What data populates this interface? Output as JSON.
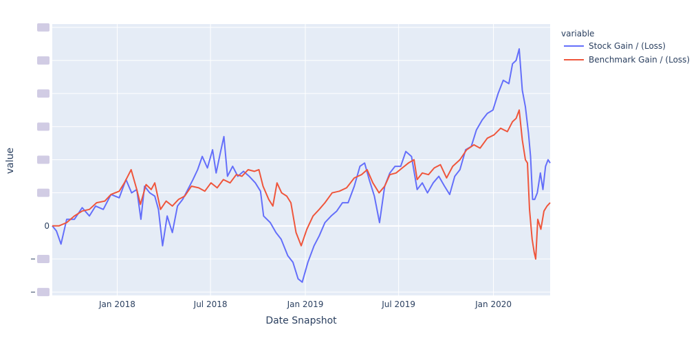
{
  "chart_data": {
    "type": "line",
    "title": "",
    "xlabel": "Date Snapshot",
    "ylabel": "value",
    "x_ticks": [
      "Jan 2018",
      "Jul 2018",
      "Jan 2019",
      "Jul 2019",
      "Jan 2020"
    ],
    "y_ticks_visible": [
      "0"
    ],
    "xlim": [
      "2017-08-28",
      "2020-04-20"
    ],
    "ylim": [
      -2.1,
      6.1
    ],
    "grid": true,
    "legend": {
      "title": "variable",
      "placement": "right"
    },
    "series": [
      {
        "name": "Stock Gain / (Loss)",
        "color": "#636efa",
        "points": [
          [
            "2017-08-28",
            0.0
          ],
          [
            "2017-09-05",
            -0.15
          ],
          [
            "2017-09-14",
            -0.55
          ],
          [
            "2017-09-25",
            0.2
          ],
          [
            "2017-10-10",
            0.2
          ],
          [
            "2017-10-25",
            0.55
          ],
          [
            "2017-11-08",
            0.3
          ],
          [
            "2017-11-20",
            0.6
          ],
          [
            "2017-12-05",
            0.5
          ],
          [
            "2017-12-20",
            0.95
          ],
          [
            "2018-01-05",
            0.85
          ],
          [
            "2018-01-18",
            1.4
          ],
          [
            "2018-01-29",
            1.0
          ],
          [
            "2018-02-08",
            1.1
          ],
          [
            "2018-02-16",
            0.2
          ],
          [
            "2018-02-23",
            1.2
          ],
          [
            "2018-03-05",
            1.0
          ],
          [
            "2018-03-15",
            0.9
          ],
          [
            "2018-03-22",
            0.5
          ],
          [
            "2018-03-30",
            -0.6
          ],
          [
            "2018-04-08",
            0.3
          ],
          [
            "2018-04-18",
            -0.2
          ],
          [
            "2018-04-28",
            0.6
          ],
          [
            "2018-05-08",
            0.8
          ],
          [
            "2018-05-18",
            1.1
          ],
          [
            "2018-05-28",
            1.4
          ],
          [
            "2018-06-06",
            1.7
          ],
          [
            "2018-06-15",
            2.1
          ],
          [
            "2018-06-25",
            1.75
          ],
          [
            "2018-07-05",
            2.3
          ],
          [
            "2018-07-12",
            1.6
          ],
          [
            "2018-07-20",
            2.2
          ],
          [
            "2018-07-27",
            2.7
          ],
          [
            "2018-08-03",
            1.5
          ],
          [
            "2018-08-13",
            1.8
          ],
          [
            "2018-08-23",
            1.5
          ],
          [
            "2018-09-03",
            1.65
          ],
          [
            "2018-09-14",
            1.5
          ],
          [
            "2018-09-26",
            1.3
          ],
          [
            "2018-10-06",
            1.05
          ],
          [
            "2018-10-12",
            0.3
          ],
          [
            "2018-10-25",
            0.1
          ],
          [
            "2018-11-05",
            -0.2
          ],
          [
            "2018-11-15",
            -0.4
          ],
          [
            "2018-11-28",
            -0.9
          ],
          [
            "2018-12-08",
            -1.1
          ],
          [
            "2018-12-18",
            -1.6
          ],
          [
            "2018-12-26",
            -1.7
          ],
          [
            "2019-01-06",
            -1.1
          ],
          [
            "2019-01-18",
            -0.6
          ],
          [
            "2019-01-28",
            -0.3
          ],
          [
            "2019-02-08",
            0.1
          ],
          [
            "2019-02-20",
            0.3
          ],
          [
            "2019-03-03",
            0.45
          ],
          [
            "2019-03-14",
            0.7
          ],
          [
            "2019-03-25",
            0.7
          ],
          [
            "2019-04-06",
            1.2
          ],
          [
            "2019-04-17",
            1.8
          ],
          [
            "2019-04-26",
            1.9
          ],
          [
            "2019-05-05",
            1.4
          ],
          [
            "2019-05-15",
            0.9
          ],
          [
            "2019-05-25",
            0.1
          ],
          [
            "2019-06-04",
            1.2
          ],
          [
            "2019-06-14",
            1.6
          ],
          [
            "2019-06-24",
            1.8
          ],
          [
            "2019-07-05",
            1.8
          ],
          [
            "2019-07-15",
            2.25
          ],
          [
            "2019-07-26",
            2.1
          ],
          [
            "2019-08-06",
            1.1
          ],
          [
            "2019-08-16",
            1.3
          ],
          [
            "2019-08-26",
            1.0
          ],
          [
            "2019-09-06",
            1.3
          ],
          [
            "2019-09-17",
            1.5
          ],
          [
            "2019-09-28",
            1.2
          ],
          [
            "2019-10-08",
            0.95
          ],
          [
            "2019-10-18",
            1.5
          ],
          [
            "2019-10-28",
            1.7
          ],
          [
            "2019-11-08",
            2.3
          ],
          [
            "2019-11-19",
            2.4
          ],
          [
            "2019-11-29",
            2.9
          ],
          [
            "2019-12-10",
            3.2
          ],
          [
            "2019-12-20",
            3.4
          ],
          [
            "2019-12-31",
            3.5
          ],
          [
            "2020-01-10",
            4.0
          ],
          [
            "2020-01-20",
            4.4
          ],
          [
            "2020-01-31",
            4.3
          ],
          [
            "2020-02-07",
            4.9
          ],
          [
            "2020-02-14",
            5.0
          ],
          [
            "2020-02-20",
            5.35
          ],
          [
            "2020-02-26",
            4.1
          ],
          [
            "2020-03-03",
            3.6
          ],
          [
            "2020-03-09",
            2.8
          ],
          [
            "2020-03-13",
            2.1
          ],
          [
            "2020-03-17",
            0.8
          ],
          [
            "2020-03-21",
            0.8
          ],
          [
            "2020-03-26",
            1.0
          ],
          [
            "2020-04-01",
            1.6
          ],
          [
            "2020-04-06",
            1.1
          ],
          [
            "2020-04-11",
            1.8
          ],
          [
            "2020-04-16",
            2.0
          ],
          [
            "2020-04-20",
            1.9
          ]
        ]
      },
      {
        "name": "Benchmark Gain / (Loss)",
        "color": "#ef553b",
        "points": [
          [
            "2017-08-28",
            0.0
          ],
          [
            "2017-09-10",
            0.0
          ],
          [
            "2017-09-25",
            0.1
          ],
          [
            "2017-10-10",
            0.3
          ],
          [
            "2017-10-25",
            0.45
          ],
          [
            "2017-11-08",
            0.5
          ],
          [
            "2017-11-22",
            0.7
          ],
          [
            "2017-12-08",
            0.75
          ],
          [
            "2017-12-20",
            0.95
          ],
          [
            "2018-01-05",
            1.05
          ],
          [
            "2018-01-15",
            1.3
          ],
          [
            "2018-01-28",
            1.7
          ],
          [
            "2018-02-08",
            1.1
          ],
          [
            "2018-02-15",
            0.65
          ],
          [
            "2018-02-26",
            1.25
          ],
          [
            "2018-03-08",
            1.1
          ],
          [
            "2018-03-15",
            1.3
          ],
          [
            "2018-03-26",
            0.5
          ],
          [
            "2018-04-06",
            0.75
          ],
          [
            "2018-04-18",
            0.6
          ],
          [
            "2018-04-30",
            0.8
          ],
          [
            "2018-05-12",
            0.9
          ],
          [
            "2018-05-25",
            1.2
          ],
          [
            "2018-06-08",
            1.15
          ],
          [
            "2018-06-20",
            1.05
          ],
          [
            "2018-07-02",
            1.3
          ],
          [
            "2018-07-14",
            1.15
          ],
          [
            "2018-07-26",
            1.4
          ],
          [
            "2018-08-08",
            1.3
          ],
          [
            "2018-08-20",
            1.55
          ],
          [
            "2018-08-31",
            1.5
          ],
          [
            "2018-09-12",
            1.7
          ],
          [
            "2018-09-24",
            1.65
          ],
          [
            "2018-10-03",
            1.7
          ],
          [
            "2018-10-11",
            1.2
          ],
          [
            "2018-10-22",
            0.8
          ],
          [
            "2018-10-30",
            0.6
          ],
          [
            "2018-11-07",
            1.3
          ],
          [
            "2018-11-16",
            1.0
          ],
          [
            "2018-11-26",
            0.9
          ],
          [
            "2018-12-04",
            0.7
          ],
          [
            "2018-12-14",
            -0.2
          ],
          [
            "2018-12-24",
            -0.6
          ],
          [
            "2019-01-04",
            -0.1
          ],
          [
            "2019-01-16",
            0.3
          ],
          [
            "2019-01-28",
            0.5
          ],
          [
            "2019-02-08",
            0.7
          ],
          [
            "2019-02-22",
            1.0
          ],
          [
            "2019-03-08",
            1.05
          ],
          [
            "2019-03-22",
            1.15
          ],
          [
            "2019-04-06",
            1.45
          ],
          [
            "2019-04-20",
            1.55
          ],
          [
            "2019-05-01",
            1.7
          ],
          [
            "2019-05-12",
            1.3
          ],
          [
            "2019-05-24",
            1.0
          ],
          [
            "2019-06-04",
            1.2
          ],
          [
            "2019-06-14",
            1.55
          ],
          [
            "2019-06-26",
            1.6
          ],
          [
            "2019-07-08",
            1.75
          ],
          [
            "2019-07-20",
            1.9
          ],
          [
            "2019-07-31",
            2.0
          ],
          [
            "2019-08-06",
            1.4
          ],
          [
            "2019-08-16",
            1.6
          ],
          [
            "2019-08-28",
            1.55
          ],
          [
            "2019-09-08",
            1.75
          ],
          [
            "2019-09-20",
            1.85
          ],
          [
            "2019-10-02",
            1.45
          ],
          [
            "2019-10-14",
            1.8
          ],
          [
            "2019-10-28",
            2.0
          ],
          [
            "2019-11-10",
            2.3
          ],
          [
            "2019-11-24",
            2.45
          ],
          [
            "2019-12-06",
            2.35
          ],
          [
            "2019-12-20",
            2.65
          ],
          [
            "2020-01-02",
            2.75
          ],
          [
            "2020-01-15",
            2.95
          ],
          [
            "2020-01-28",
            2.85
          ],
          [
            "2020-02-07",
            3.15
          ],
          [
            "2020-02-14",
            3.25
          ],
          [
            "2020-02-20",
            3.5
          ],
          [
            "2020-02-26",
            2.6
          ],
          [
            "2020-03-03",
            2.0
          ],
          [
            "2020-03-07",
            1.9
          ],
          [
            "2020-03-11",
            0.5
          ],
          [
            "2020-03-16",
            -0.4
          ],
          [
            "2020-03-20",
            -0.8
          ],
          [
            "2020-03-23",
            -1.0
          ],
          [
            "2020-03-27",
            0.2
          ],
          [
            "2020-04-02",
            -0.1
          ],
          [
            "2020-04-08",
            0.45
          ],
          [
            "2020-04-14",
            0.6
          ],
          [
            "2020-04-20",
            0.7
          ]
        ]
      }
    ]
  }
}
